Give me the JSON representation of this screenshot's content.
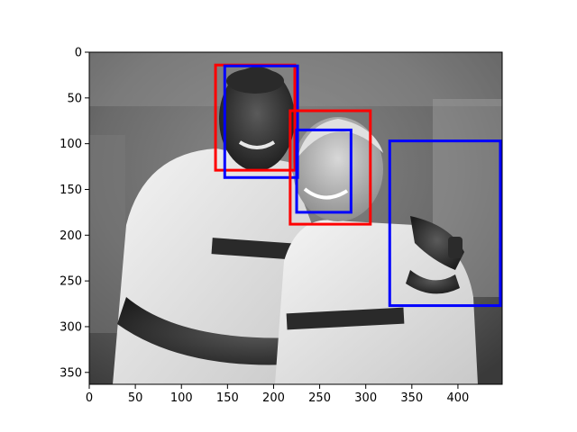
{
  "image": {
    "description_icon": "photo-icon",
    "x_range": [
      0,
      448
    ],
    "y_range": [
      0,
      363
    ],
    "y_inverted": true
  },
  "axes": {
    "x_ticks": [
      0,
      50,
      100,
      150,
      200,
      250,
      300,
      350,
      400
    ],
    "y_ticks": [
      0,
      50,
      100,
      150,
      200,
      250,
      300,
      350
    ]
  },
  "boxes": [
    {
      "label": "face-red-1",
      "color": "#ff0000",
      "x1": 137,
      "y1": 14,
      "x2": 223,
      "y2": 129
    },
    {
      "label": "face-blue-1",
      "color": "#0000ff",
      "x1": 147,
      "y1": 15,
      "x2": 226,
      "y2": 137
    },
    {
      "label": "face-red-2",
      "color": "#ff0000",
      "x1": 218,
      "y1": 64,
      "x2": 305,
      "y2": 188
    },
    {
      "label": "face-blue-2",
      "color": "#0000ff",
      "x1": 225,
      "y1": 85,
      "x2": 284,
      "y2": 175
    },
    {
      "label": "box-blue-3",
      "color": "#0000ff",
      "x1": 326,
      "y1": 97,
      "x2": 446,
      "y2": 277
    }
  ]
}
